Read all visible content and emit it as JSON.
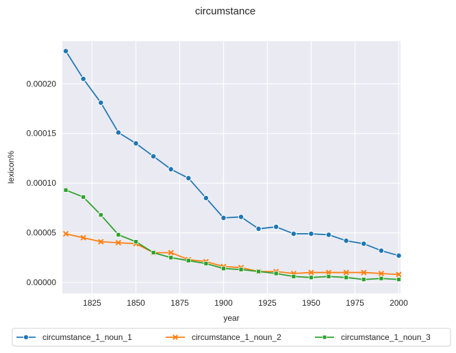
{
  "chart_data": {
    "type": "line",
    "title": "circumstance",
    "xlabel": "year",
    "ylabel": "lexicon%",
    "x": [
      1810,
      1820,
      1830,
      1840,
      1850,
      1860,
      1870,
      1880,
      1890,
      1900,
      1910,
      1920,
      1930,
      1940,
      1950,
      1960,
      1970,
      1980,
      1990,
      2000
    ],
    "xlim": [
      1808,
      2001
    ],
    "ylim": [
      -1.1e-05,
      0.000243
    ],
    "xticks": [
      "1825",
      "1850",
      "1875",
      "1900",
      "1925",
      "1950",
      "1975",
      "2000"
    ],
    "xtick_values": [
      1825,
      1850,
      1875,
      1900,
      1925,
      1950,
      1975,
      2000
    ],
    "yticks": [
      "0.00000",
      "0.00005",
      "0.00010",
      "0.00015",
      "0.00020"
    ],
    "ytick_values": [
      0.0,
      5e-05,
      0.0001,
      0.00015,
      0.0002
    ],
    "grid": true,
    "legend_position": "bottom",
    "series": [
      {
        "name": "circumstance_1_noun_1",
        "color": "#1f77b4",
        "marker": "circle",
        "values": [
          0.000233,
          0.000205,
          0.000181,
          0.000151,
          0.00014,
          0.000127,
          0.000114,
          0.000105,
          8.5e-05,
          6.5e-05,
          6.6e-05,
          5.4e-05,
          5.6e-05,
          4.9e-05,
          4.9e-05,
          4.8e-05,
          4.2e-05,
          3.9e-05,
          3.2e-05,
          2.7e-05
        ]
      },
      {
        "name": "circumstance_1_noun_2",
        "color": "#ff7f0e",
        "marker": "x",
        "values": [
          4.9e-05,
          4.5e-05,
          4.1e-05,
          4e-05,
          3.9e-05,
          3e-05,
          3e-05,
          2.3e-05,
          2.1e-05,
          1.6e-05,
          1.5e-05,
          1.1e-05,
          1.1e-05,
          9e-06,
          1e-05,
          1e-05,
          1e-05,
          1e-05,
          9e-06,
          8e-06
        ]
      },
      {
        "name": "circumstance_1_noun_3",
        "color": "#2ca02c",
        "marker": "square",
        "values": [
          9.3e-05,
          8.6e-05,
          6.8e-05,
          4.8e-05,
          4.1e-05,
          3e-05,
          2.5e-05,
          2.2e-05,
          1.9e-05,
          1.4e-05,
          1.3e-05,
          1.1e-05,
          9e-06,
          6e-06,
          5e-06,
          6e-06,
          5e-06,
          3e-06,
          4e-06,
          3e-06
        ]
      }
    ]
  }
}
